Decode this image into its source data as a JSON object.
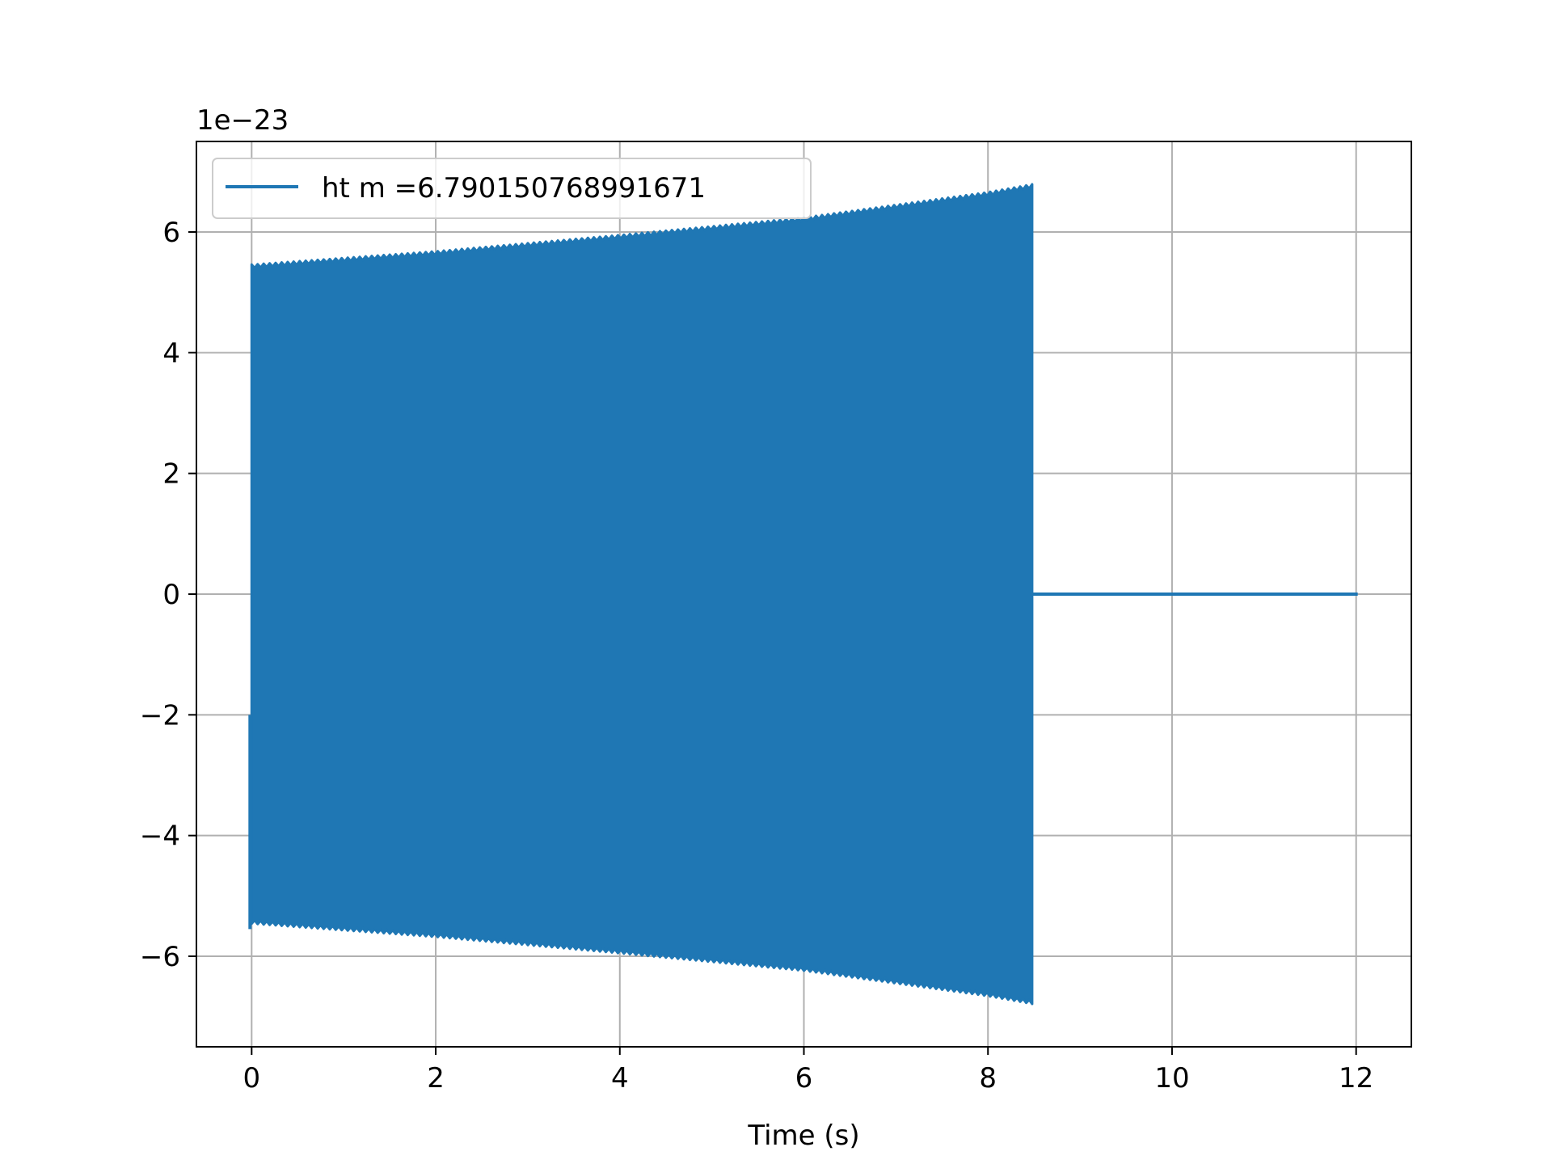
{
  "chart_data": {
    "type": "line",
    "title": "",
    "xlabel": "Time (s)",
    "ylabel": "",
    "y_offset_text": "1e−23",
    "xlim": [
      -0.6,
      12.6
    ],
    "ylim": [
      -7.5,
      7.5
    ],
    "x_ticks": [
      0,
      2,
      4,
      6,
      8,
      10,
      12
    ],
    "x_tick_labels": [
      "0",
      "2",
      "4",
      "6",
      "8",
      "10",
      "12"
    ],
    "y_ticks": [
      -6,
      -4,
      -2,
      0,
      2,
      4,
      6
    ],
    "y_tick_labels": [
      "−6",
      "−4",
      "−2",
      "0",
      "2",
      "4",
      "6"
    ],
    "grid": true,
    "legend_position": "upper-left",
    "series": [
      {
        "name": "ht m =6.790150768991671",
        "color": "#1f77b4",
        "signal": "oscillating chirp",
        "signal_start_s": 0.0,
        "signal_end_s": 8.48,
        "envelope_t": [
          0.0,
          2.0,
          4.0,
          6.0,
          8.0,
          8.48
        ],
        "envelope_amplitude": [
          5.46,
          5.68,
          5.95,
          6.24,
          6.66,
          6.79
        ],
        "flat_start_s": 8.48,
        "flat_end_s": 12.0,
        "flat_value": 0.0
      }
    ]
  }
}
